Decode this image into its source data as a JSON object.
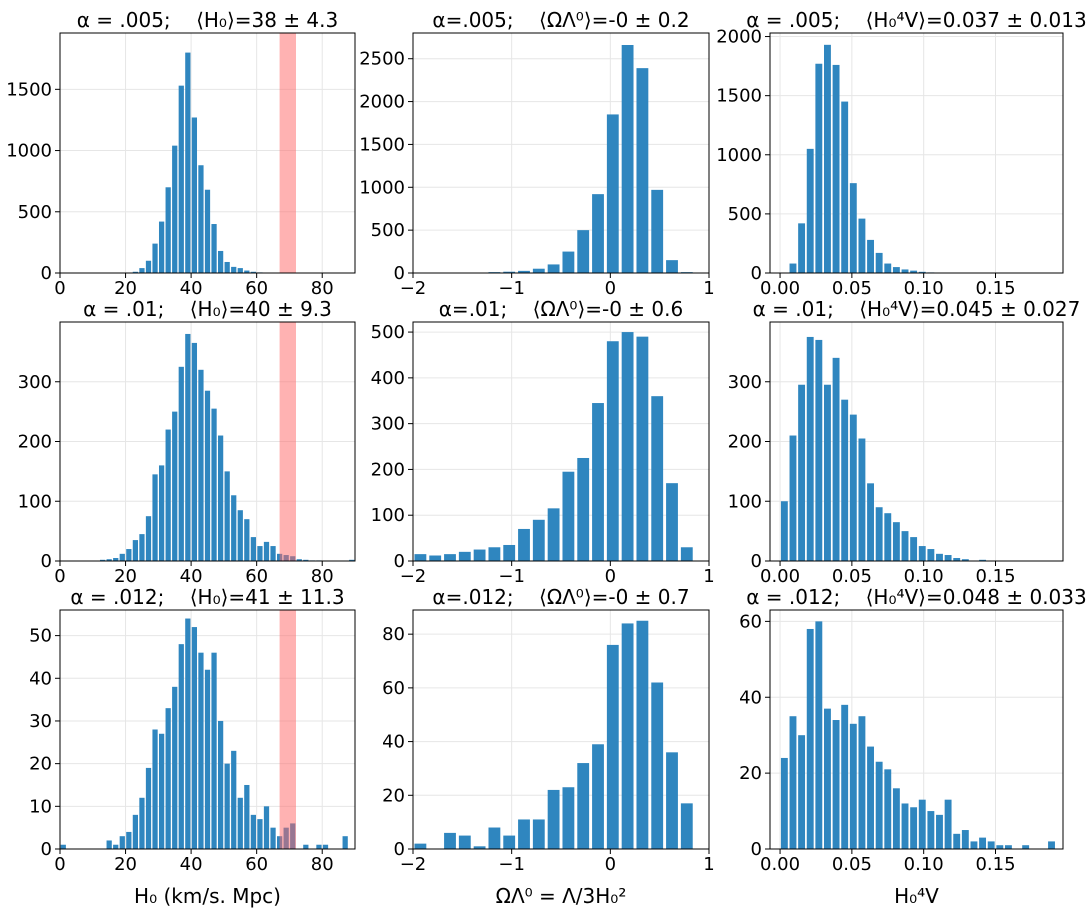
{
  "chart_data": [
    {
      "type": "histogram",
      "title": "α = .005;    ⟨H₀⟩=38 ± 4.3",
      "color": "#2f86bf",
      "bins": [
        0,
        2,
        4,
        6,
        8,
        10,
        12,
        14,
        16,
        18,
        20,
        22,
        24,
        26,
        28,
        30,
        32,
        34,
        36,
        38,
        40,
        42,
        44,
        46,
        48,
        50,
        52,
        54,
        56,
        58,
        60,
        62,
        64,
        66,
        68,
        70,
        72,
        74,
        76,
        78,
        80,
        82,
        84,
        86,
        88,
        90
      ],
      "values": [
        0,
        0,
        0,
        0,
        0,
        0,
        0,
        0,
        0,
        0,
        0,
        10,
        40,
        100,
        240,
        420,
        700,
        1040,
        1530,
        1800,
        1270,
        880,
        680,
        400,
        180,
        90,
        50,
        40,
        20,
        10,
        5,
        0,
        0,
        0,
        0,
        0,
        0,
        0,
        0,
        0,
        0,
        0,
        0,
        0,
        0
      ],
      "xlim": [
        0,
        90
      ],
      "ylim": [
        0,
        1960
      ],
      "xticks": [
        0,
        20,
        40,
        60,
        80
      ],
      "yticks": [
        0,
        500,
        1000,
        1500
      ],
      "grid": true,
      "band": [
        67,
        72
      ],
      "band_color": "#ff6666"
    },
    {
      "type": "histogram",
      "title": "α=.005;    ⟨ΩΛ⁰⟩=-0 ± 0.2",
      "color": "#2f86bf",
      "bins": [
        -2,
        -1.85,
        -1.7,
        -1.55,
        -1.4,
        -1.25,
        -1.1,
        -0.95,
        -0.8,
        -0.65,
        -0.5,
        -0.35,
        -0.2,
        -0.05,
        0.1,
        0.25,
        0.4,
        0.55,
        0.7,
        0.85,
        1
      ],
      "values": [
        0,
        0,
        0,
        0,
        0,
        10,
        15,
        25,
        50,
        100,
        250,
        500,
        920,
        1850,
        2660,
        2390,
        970,
        150,
        10,
        0
      ],
      "xlim": [
        -2,
        1
      ],
      "ylim": [
        0,
        2800
      ],
      "xticks": [
        {
          "value": -2,
          "label": "−2"
        },
        {
          "value": -1,
          "label": "−1"
        },
        0,
        1
      ],
      "yticks": [
        0,
        500,
        1000,
        1500,
        2000,
        2500
      ],
      "grid": true
    },
    {
      "type": "histogram",
      "title": "α = .005;    ⟨H₀⁴V⟩=0.037 ± 0.013",
      "color": "#2f86bf",
      "bins": [
        0,
        0.006,
        0.012,
        0.018,
        0.024,
        0.03,
        0.036,
        0.042,
        0.048,
        0.054,
        0.06,
        0.066,
        0.072,
        0.078,
        0.084,
        0.09,
        0.096,
        0.102,
        0.108,
        0.114,
        0.12,
        0.126,
        0.132,
        0.138,
        0.144,
        0.15,
        0.156,
        0.162,
        0.168,
        0.174,
        0.18,
        0.186,
        0.192
      ],
      "values": [
        0,
        80,
        420,
        1050,
        1770,
        1930,
        1760,
        1450,
        760,
        460,
        280,
        170,
        80,
        50,
        30,
        20,
        10,
        5,
        0,
        0,
        0,
        0,
        0,
        0,
        0,
        0,
        0,
        0,
        0,
        0,
        0,
        0
      ],
      "xlim": [
        -0.007,
        0.197
      ],
      "ylim": [
        0,
        2030
      ],
      "xticks": [
        {
          "value": 0,
          "label": "0.00"
        },
        0.05,
        {
          "value": 0.1,
          "label": "0.10"
        },
        0.15
      ],
      "yticks": [
        0,
        500,
        1000,
        1500,
        2000
      ],
      "grid": true
    },
    {
      "type": "histogram",
      "title": "α = .01;    ⟨H₀⟩=40 ± 9.3",
      "color": "#2f86bf",
      "bins": [
        0,
        2,
        4,
        6,
        8,
        10,
        12,
        14,
        16,
        18,
        20,
        22,
        24,
        26,
        28,
        30,
        32,
        34,
        36,
        38,
        40,
        42,
        44,
        46,
        48,
        50,
        52,
        54,
        56,
        58,
        60,
        62,
        64,
        66,
        68,
        70,
        72,
        74,
        76,
        78,
        80,
        82,
        84,
        86,
        88,
        90
      ],
      "values": [
        0,
        0,
        0,
        0,
        0,
        0,
        2,
        3,
        5,
        12,
        20,
        35,
        45,
        75,
        145,
        160,
        220,
        250,
        325,
        380,
        365,
        320,
        285,
        255,
        210,
        150,
        110,
        85,
        70,
        40,
        25,
        32,
        25,
        12,
        10,
        8,
        3,
        2,
        1,
        1,
        0,
        0,
        0,
        0,
        2
      ],
      "xlim": [
        0,
        90
      ],
      "ylim": [
        0,
        400
      ],
      "xticks": [
        0,
        20,
        40,
        60,
        80
      ],
      "yticks": [
        0,
        100,
        200,
        300
      ],
      "grid": true,
      "band": [
        67,
        72
      ],
      "band_color": "#ff6666"
    },
    {
      "type": "histogram",
      "title": "α=.01;    ⟨ΩΛ⁰⟩=-0 ± 0.6",
      "color": "#2f86bf",
      "bins": [
        -2,
        -1.85,
        -1.7,
        -1.55,
        -1.4,
        -1.25,
        -1.1,
        -0.95,
        -0.8,
        -0.65,
        -0.5,
        -0.35,
        -0.2,
        -0.05,
        0.1,
        0.25,
        0.4,
        0.55,
        0.7,
        0.85,
        1
      ],
      "values": [
        15,
        12,
        15,
        20,
        25,
        30,
        35,
        70,
        90,
        115,
        195,
        225,
        345,
        480,
        500,
        490,
        360,
        170,
        30,
        0
      ],
      "xlim": [
        -2,
        1
      ],
      "ylim": [
        0,
        522
      ],
      "xticks": [
        {
          "value": -2,
          "label": "−2"
        },
        {
          "value": -1,
          "label": "−1"
        },
        0,
        1
      ],
      "yticks": [
        0,
        100,
        200,
        300,
        400,
        500
      ],
      "grid": true
    },
    {
      "type": "histogram",
      "title": "α = .01;    ⟨H₀⁴V⟩=0.045 ± 0.027",
      "color": "#2f86bf",
      "bins": [
        0,
        0.006,
        0.012,
        0.018,
        0.024,
        0.03,
        0.036,
        0.042,
        0.048,
        0.054,
        0.06,
        0.066,
        0.072,
        0.078,
        0.084,
        0.09,
        0.096,
        0.102,
        0.108,
        0.114,
        0.12,
        0.126,
        0.132,
        0.138,
        0.144,
        0.15,
        0.156,
        0.162,
        0.168,
        0.174,
        0.18,
        0.186,
        0.192
      ],
      "values": [
        100,
        210,
        295,
        375,
        370,
        295,
        340,
        270,
        245,
        205,
        130,
        90,
        80,
        65,
        50,
        40,
        25,
        20,
        12,
        10,
        5,
        3,
        0,
        2,
        0,
        0,
        0,
        0,
        0,
        0,
        0,
        0
      ],
      "xlim": [
        -0.007,
        0.197
      ],
      "ylim": [
        0,
        400
      ],
      "xticks": [
        {
          "value": 0,
          "label": "0.00"
        },
        0.05,
        {
          "value": 0.1,
          "label": "0.10"
        },
        0.15
      ],
      "yticks": [
        0,
        100,
        200,
        300
      ],
      "grid": true
    },
    {
      "type": "histogram",
      "title": "α = .012;    ⟨H₀⟩=41 ± 11.3",
      "xlabel": "H₀ (km/s. Mpc)",
      "color": "#2f86bf",
      "bins": [
        0,
        2,
        4,
        6,
        8,
        10,
        12,
        14,
        16,
        18,
        20,
        22,
        24,
        26,
        28,
        30,
        32,
        34,
        36,
        38,
        40,
        42,
        44,
        46,
        48,
        50,
        52,
        54,
        56,
        58,
        60,
        62,
        64,
        66,
        68,
        70,
        72,
        74,
        76,
        78,
        80,
        82,
        84,
        86,
        88,
        90
      ],
      "values": [
        1,
        0,
        0,
        0,
        0,
        0,
        0,
        2,
        1,
        3,
        4,
        8,
        12,
        19,
        28,
        27,
        33,
        38,
        48,
        54,
        52,
        46,
        42,
        46,
        30,
        20,
        23,
        12,
        15,
        8,
        7,
        10,
        5,
        3,
        5,
        6,
        0,
        1,
        0,
        1,
        1,
        0,
        0,
        3,
        0
      ],
      "xlim": [
        0,
        90
      ],
      "ylim": [
        0,
        56
      ],
      "xticks": [
        0,
        20,
        40,
        60,
        80
      ],
      "yticks": [
        0,
        10,
        20,
        30,
        40,
        50
      ],
      "grid": true,
      "band": [
        67,
        72
      ],
      "band_color": "#ff6666"
    },
    {
      "type": "histogram",
      "title": "α=.012;    ⟨ΩΛ⁰⟩=-0 ± 0.7",
      "xlabel": "ΩΛ⁰ = Λ/3H₀²",
      "color": "#2f86bf",
      "bins": [
        -2,
        -1.85,
        -1.7,
        -1.55,
        -1.4,
        -1.25,
        -1.1,
        -0.95,
        -0.8,
        -0.65,
        -0.5,
        -0.35,
        -0.2,
        -0.05,
        0.1,
        0.25,
        0.4,
        0.55,
        0.7,
        0.85,
        1
      ],
      "values": [
        2,
        0,
        6,
        5,
        1,
        8,
        5,
        11,
        11,
        22,
        23,
        32,
        39,
        76,
        84,
        85,
        62,
        36,
        17,
        0
      ],
      "xlim": [
        -2,
        1
      ],
      "ylim": [
        0,
        89
      ],
      "xticks": [
        {
          "value": -2,
          "label": "−2"
        },
        {
          "value": -1,
          "label": "−1"
        },
        0,
        1
      ],
      "yticks": [
        0,
        20,
        40,
        60,
        80
      ],
      "grid": true
    },
    {
      "type": "histogram",
      "title": "α = .012;    ⟨H₀⁴V⟩=0.048 ± 0.033",
      "xlabel": "H₀⁴V",
      "color": "#2f86bf",
      "bins": [
        0,
        0.006,
        0.012,
        0.018,
        0.024,
        0.03,
        0.036,
        0.042,
        0.048,
        0.054,
        0.06,
        0.066,
        0.072,
        0.078,
        0.084,
        0.09,
        0.096,
        0.102,
        0.108,
        0.114,
        0.12,
        0.126,
        0.132,
        0.138,
        0.144,
        0.15,
        0.156,
        0.162,
        0.168,
        0.174,
        0.18,
        0.186,
        0.192
      ],
      "values": [
        24,
        35,
        30,
        58,
        60,
        37,
        34,
        38,
        33,
        35,
        27,
        23,
        21,
        16,
        12,
        11,
        13,
        10,
        9,
        13,
        4,
        5,
        2,
        3,
        2,
        1,
        1,
        0,
        1,
        0,
        0,
        2
      ],
      "xlim": [
        -0.007,
        0.197
      ],
      "ylim": [
        0,
        63
      ],
      "xticks": [
        {
          "value": 0,
          "label": "0.00"
        },
        0.05,
        {
          "value": 0.1,
          "label": "0.10"
        },
        0.15
      ],
      "yticks": [
        0,
        20,
        40,
        60
      ],
      "grid": true
    }
  ]
}
